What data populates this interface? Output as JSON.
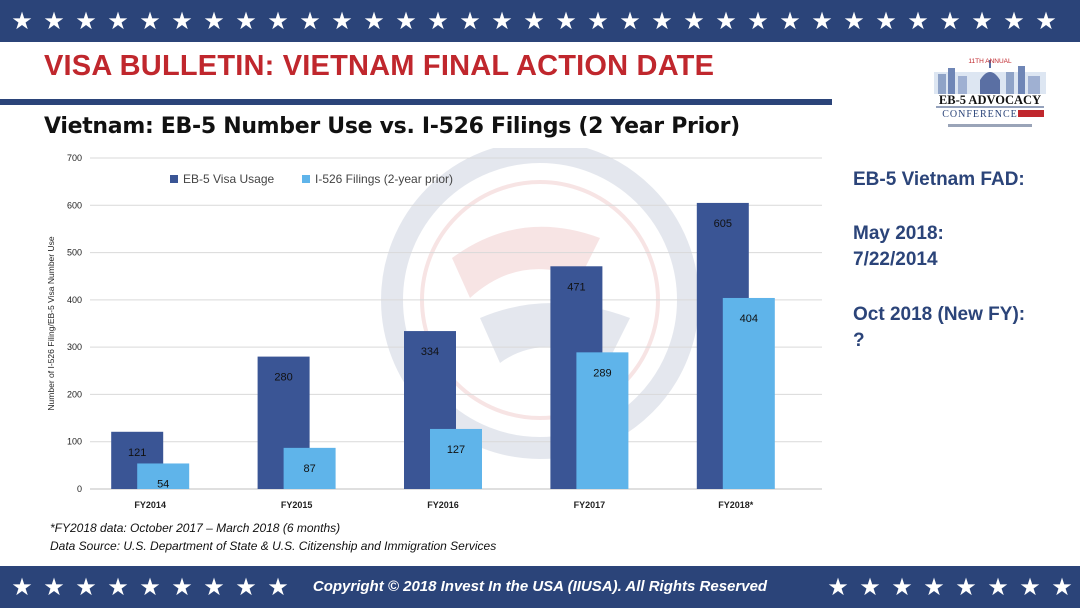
{
  "slide": {
    "title": "VISA BULLETIN: VIETNAM FINAL ACTION DATE",
    "chart_heading": "Vietnam: EB-5 Number Use vs. I-526 Filings (2 Year Prior)",
    "footnote_1": "*FY2018 data: October 2017 – March 2018 (6 months)",
    "footnote_2": "Data Source: U.S. Department of State & U.S. Citizenship and Immigration Services",
    "copyright": "Copyright © 2018 Invest In the USA (IIUSA). All Rights Reserved"
  },
  "logo": {
    "top_text": "11TH ANNUAL",
    "main_text": "EB-5 ADVOCACY",
    "sub_text": "CONFERENCE"
  },
  "side_panel": {
    "heading": "EB-5 Vietnam FAD:",
    "line1": "May 2018:",
    "line2": "7/22/2014",
    "line3": "Oct 2018 (New FY):",
    "line4": "?"
  },
  "colors": {
    "navy": "#2b4479",
    "title_red": "#c0272d",
    "series_dark": "#3a5595",
    "series_light": "#5fb4ea"
  },
  "chart_data": {
    "type": "bar",
    "title": "",
    "xlabel": "",
    "ylabel": "Number of I-526 Filing/EB-5 Visa Number Use",
    "categories": [
      "FY2014",
      "FY2015",
      "FY2016",
      "FY2017",
      "FY2018*"
    ],
    "series": [
      {
        "name": "EB-5 Visa Usage",
        "values": [
          121,
          280,
          334,
          471,
          605
        ]
      },
      {
        "name": "I-526 Filings (2-year prior)",
        "values": [
          54,
          87,
          127,
          289,
          404
        ]
      }
    ],
    "yticks": [
      0,
      100,
      200,
      300,
      400,
      500,
      600,
      700
    ],
    "ylim": [
      0,
      700
    ],
    "grid": true,
    "legend": "top-left"
  }
}
